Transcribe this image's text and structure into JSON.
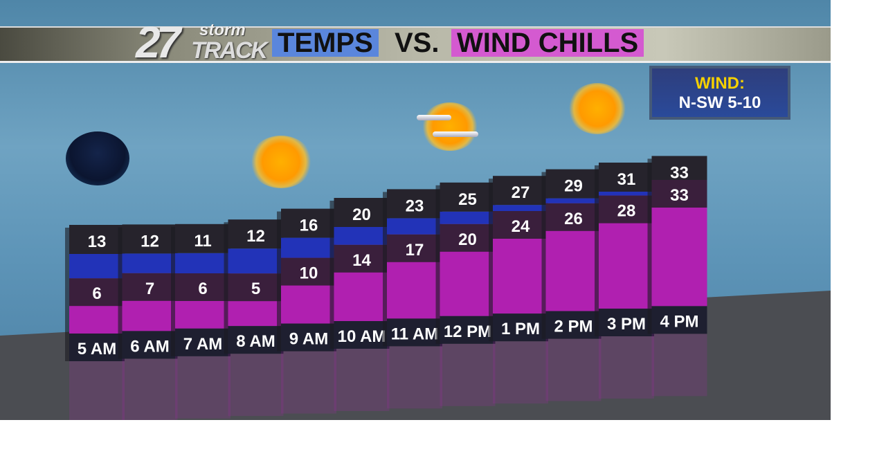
{
  "header": {
    "logo": "27 storm TRACK",
    "title_part1": "TEMPS",
    "title_part2": "VS.",
    "title_part3": "WIND CHILLS"
  },
  "wind_box": {
    "label": "WIND:",
    "value": "N-SW 5-10"
  },
  "colors": {
    "temp": "#2233b8",
    "wind_chill": "#b020b0",
    "value_box": "#26232c",
    "title_temps_bg": "#5a86dc",
    "title_chills_bg": "#d45ad0",
    "wind_label": "#f5d000"
  },
  "chart_data": {
    "type": "bar",
    "title": "TEMPS VS. WIND CHILLS",
    "categories": [
      "5 AM",
      "6 AM",
      "7 AM",
      "8 AM",
      "9 AM",
      "10 AM",
      "11 AM",
      "12 PM",
      "1 PM",
      "2 PM",
      "3 PM",
      "4 PM"
    ],
    "series": [
      {
        "name": "TEMPS",
        "values": [
          13,
          12,
          11,
          12,
          16,
          20,
          23,
          25,
          27,
          29,
          31,
          33
        ]
      },
      {
        "name": "WIND CHILLS",
        "values": [
          6,
          7,
          6,
          5,
          10,
          14,
          17,
          20,
          24,
          26,
          28,
          33
        ]
      }
    ],
    "sky_icons": [
      "clear-night",
      "sunny",
      "sunny",
      "partly-cloudy",
      "sunny"
    ]
  }
}
